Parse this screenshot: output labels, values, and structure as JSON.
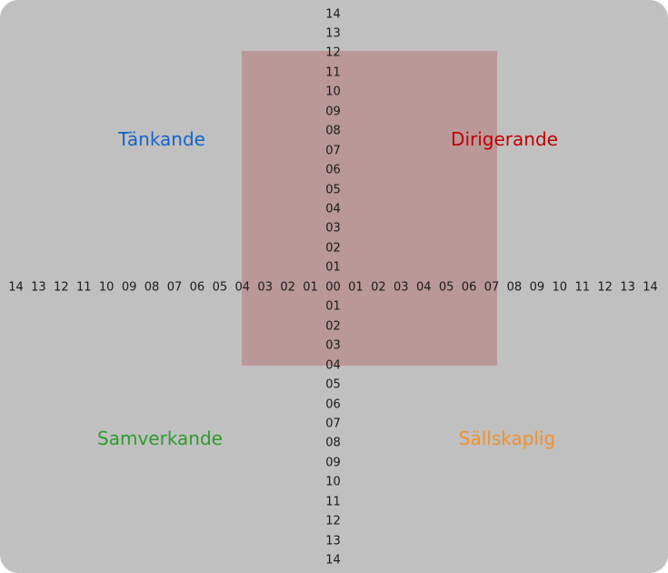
{
  "colors": {
    "background": "#c0c0c0",
    "tick_text": "#1a1a1a"
  },
  "quadrants": {
    "top_left": {
      "label": "Tänkande",
      "color": "#1565c8"
    },
    "top_right": {
      "label": "Dirigerande",
      "color": "#c00000"
    },
    "bottom_left": {
      "label": "Samverkande",
      "color": "#2e9b2e"
    },
    "bottom_right": {
      "label": "Sällskaplig",
      "color": "#f0922d"
    }
  },
  "highlight_region": {
    "color": "#ba9898",
    "x_from_label": "04",
    "x_to_label": "07",
    "y_from_label": "12",
    "y_to_label": "04"
  },
  "axes": {
    "vertical": {
      "labels": [
        "14",
        "13",
        "12",
        "11",
        "10",
        "09",
        "08",
        "07",
        "06",
        "05",
        "04",
        "03",
        "02",
        "01",
        "00",
        "01",
        "02",
        "03",
        "04",
        "05",
        "06",
        "07",
        "08",
        "09",
        "10",
        "11",
        "12",
        "13",
        "14"
      ]
    },
    "horizontal": {
      "left_labels": [
        "14",
        "13",
        "12",
        "11",
        "10",
        "09",
        "08",
        "07",
        "06",
        "05",
        "04",
        "03",
        "02",
        "01"
      ],
      "center_label": "00",
      "right_labels": [
        "01",
        "02",
        "03",
        "04",
        "05",
        "06",
        "07",
        "08",
        "09",
        "10",
        "11",
        "12",
        "13",
        "14"
      ]
    }
  },
  "chart_data": {
    "type": "area",
    "title": "",
    "quadrant_labels": [
      "Tänkande",
      "Dirigerande",
      "Samverkande",
      "Sällskaplig"
    ],
    "x_ticks": [
      "14",
      "13",
      "12",
      "11",
      "10",
      "09",
      "08",
      "07",
      "06",
      "05",
      "04",
      "03",
      "02",
      "01",
      "00",
      "01",
      "02",
      "03",
      "04",
      "05",
      "06",
      "07",
      "08",
      "09",
      "10",
      "11",
      "12",
      "13",
      "14"
    ],
    "y_ticks": [
      "14",
      "13",
      "12",
      "11",
      "10",
      "09",
      "08",
      "07",
      "06",
      "05",
      "04",
      "03",
      "02",
      "01",
      "00",
      "01",
      "02",
      "03",
      "04",
      "05",
      "06",
      "07",
      "08",
      "09",
      "10",
      "11",
      "12",
      "13",
      "14"
    ],
    "x_range_units": [
      -14,
      14
    ],
    "y_range_units": [
      -14,
      14
    ],
    "highlighted_region": {
      "x_min": -4,
      "x_max": 7,
      "y_min": -4,
      "y_max": 12
    },
    "grid": false,
    "legend": false
  }
}
